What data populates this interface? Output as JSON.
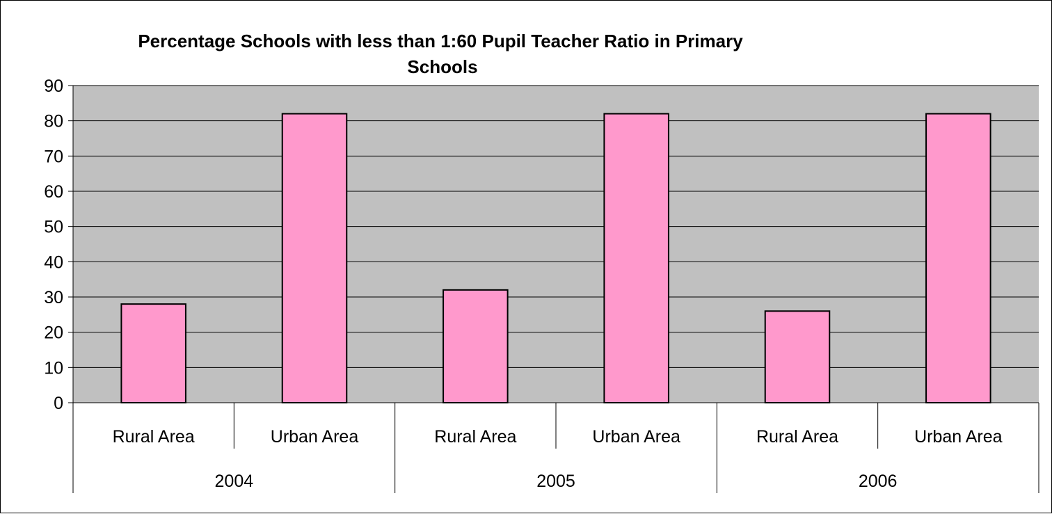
{
  "chart_data": {
    "type": "bar",
    "title_line1": "Percentage Schools with less than 1:60 Pupil Teacher Ratio in Primary",
    "title_line2": "Schools",
    "groups": [
      "2004",
      "2005",
      "2006"
    ],
    "categories": [
      "Rural Area",
      "Urban Area",
      "Rural Area",
      "Urban Area",
      "Rural Area",
      "Urban Area"
    ],
    "values": [
      28,
      82,
      32,
      82,
      26,
      82
    ],
    "ylim": [
      0,
      90
    ],
    "yticks": [
      "0",
      "10",
      "20",
      "30",
      "40",
      "50",
      "60",
      "70",
      "80",
      "90"
    ],
    "grid": true,
    "legend": "none",
    "colors": {
      "bar_fill": "#ff99cc",
      "bar_stroke": "#000000",
      "plot_background": "#c0c0c0",
      "gridline": "#000000"
    }
  }
}
